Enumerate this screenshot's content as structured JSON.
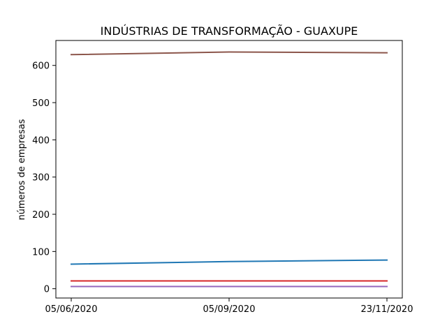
{
  "chart_data": {
    "type": "line",
    "title": "INDÚSTRIAS DE TRANSFORMAÇÃO - GUAXUPE",
    "xlabel": "",
    "ylabel": "números de empresas",
    "categories": [
      "05/06/2020",
      "05/09/2020",
      "23/11/2020"
    ],
    "ylim": [
      -25,
      667
    ],
    "yticks": [
      0,
      100,
      200,
      300,
      400,
      500,
      600
    ],
    "grid": false,
    "legend": "none",
    "series": [
      {
        "color": "#1f77b4",
        "values": [
          66,
          73,
          77
        ]
      },
      {
        "color": "#ff7f0e",
        "values": [
          21,
          21,
          21
        ]
      },
      {
        "color": "#2ca02c",
        "values": [
          21,
          21,
          21
        ]
      },
      {
        "color": "#d62728",
        "values": [
          21,
          21,
          21
        ]
      },
      {
        "color": "#9467bd",
        "values": [
          6,
          6,
          6
        ]
      },
      {
        "color": "#8c564b",
        "values": [
          629,
          636,
          634
        ]
      }
    ]
  }
}
